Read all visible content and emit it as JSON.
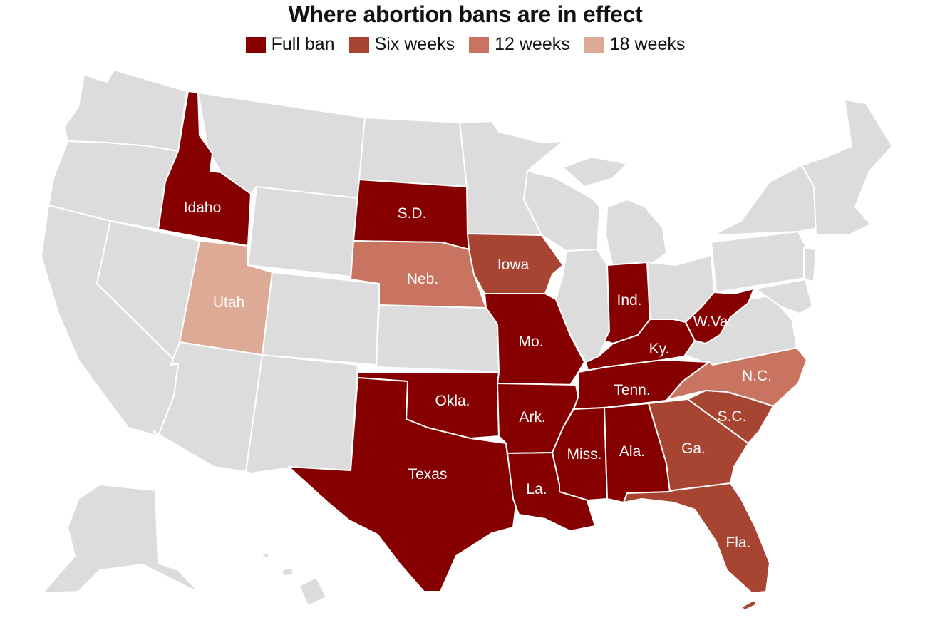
{
  "title": "Where abortion bans are in effect",
  "legend": [
    {
      "label": "Full ban",
      "color": "#870000"
    },
    {
      "label": "Six weeks",
      "color": "#a84432"
    },
    {
      "label": "12 weeks",
      "color": "#c97460"
    },
    {
      "label": "18 weeks",
      "color": "#dcaa95"
    }
  ],
  "colors": {
    "no_ban": "#dcdcdc",
    "border": "#ffffff",
    "label_text": "#ffffff"
  },
  "state_labels": {
    "idaho": "Idaho",
    "south_dakota": "S.D.",
    "iowa": "Iowa",
    "nebraska": "Neb.",
    "utah": "Utah",
    "indiana": "Ind.",
    "missouri": "Mo.",
    "kentucky": "Ky.",
    "west_virginia": "W.Va.",
    "north_carolina": "N.C.",
    "oklahoma": "Okla.",
    "tennessee": "Tenn.",
    "arkansas": "Ark.",
    "south_carolina": "S.C.",
    "texas": "Texas",
    "mississippi": "Miss.",
    "alabama": "Ala.",
    "georgia": "Ga.",
    "louisiana": "La.",
    "florida": "Fla."
  }
}
